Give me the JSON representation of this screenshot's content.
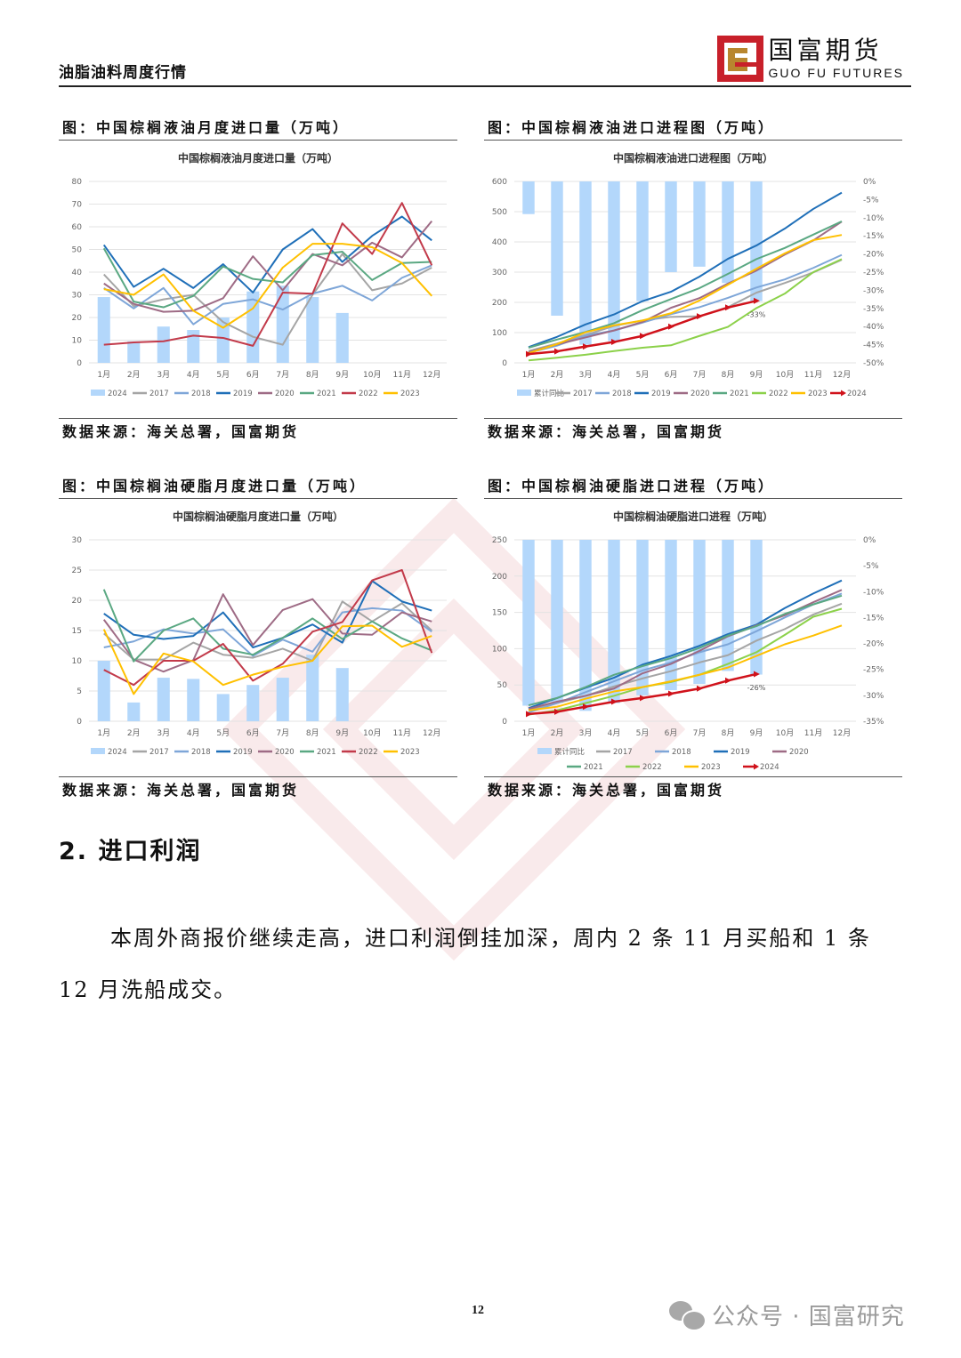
{
  "header": {
    "title": "油脂油料周度行情",
    "logo_cn": "国富期货",
    "logo_en": "GUO FU FUTURES"
  },
  "figures": [
    {
      "caption": "图：中国棕榈液油月度进口量（万吨）",
      "source": "数据来源：海关总署，国富期货"
    },
    {
      "caption": "图：中国棕榈液油进口进程图（万吨）",
      "source": "数据来源：海关总署，国富期货"
    },
    {
      "caption": "图：中国棕榈油硬脂月度进口量（万吨）",
      "source": "数据来源：海关总署，国富期货"
    },
    {
      "caption": "图：中国棕榈油硬脂进口进程（万吨）",
      "source": "数据来源：海关总署，国富期货"
    }
  ],
  "section": {
    "title": "2. 进口利润",
    "paragraph": "本周外商报价继续走高，进口利润倒挂加深，周内 2 条 11 月买船和 1 条 12 月洗船成交。"
  },
  "footer": {
    "page_number": "12",
    "wechat_label": "公众号 · 国富研究"
  },
  "colors": {
    "bar": "#b3d7fb",
    "2017": "#a5a5a5",
    "2018": "#7ea6d8",
    "2019": "#1f6fb8",
    "2020": "#9e6b85",
    "2021": "#5aa882",
    "2022": "#c23a4a",
    "2022_progress": "#8cd14a",
    "2023": "#ffc000",
    "2024": "#d0121b"
  },
  "chart_data": [
    {
      "type": "bar+line",
      "title": "中国棕榈液油月度进口量（万吨）",
      "categories": [
        "1月",
        "2月",
        "3月",
        "4月",
        "5月",
        "6月",
        "7月",
        "8月",
        "9月",
        "10月",
        "11月",
        "12月"
      ],
      "ylim": [
        0,
        80
      ],
      "yticks": [
        0,
        10,
        20,
        30,
        40,
        50,
        60,
        70,
        80
      ],
      "legend": [
        "2024",
        "2017",
        "2018",
        "2019",
        "2020",
        "2021",
        "2022",
        "2023"
      ],
      "bars": {
        "name": "2024",
        "values": [
          29,
          9.5,
          16,
          14.5,
          20,
          31.5,
          34,
          29,
          22
        ]
      },
      "series": [
        {
          "name": "2017",
          "values": [
            39,
            25,
            28,
            30,
            18,
            11.5,
            8,
            30,
            48,
            32,
            35,
            42
          ]
        },
        {
          "name": "2018",
          "values": [
            33,
            24,
            33,
            17,
            26,
            28,
            23.5,
            30.5,
            34,
            27.5,
            37.5,
            43
          ]
        },
        {
          "name": "2019",
          "values": [
            52,
            33.5,
            41.5,
            33,
            43.5,
            31,
            50,
            59,
            44.5,
            56,
            64.5,
            54
          ]
        },
        {
          "name": "2020",
          "values": [
            35,
            26,
            22.5,
            23,
            28.5,
            47,
            32,
            48,
            43,
            53,
            46.5,
            62.5
          ]
        },
        {
          "name": "2021",
          "values": [
            50.5,
            27,
            24.5,
            29.5,
            42.5,
            37,
            35.5,
            47.5,
            49,
            36.5,
            44,
            44.5
          ]
        },
        {
          "name": "2022",
          "values": [
            8,
            9,
            9.5,
            12,
            11,
            7.5,
            31,
            30.5,
            61.5,
            48,
            70.5,
            43
          ]
        },
        {
          "name": "2023",
          "values": [
            32.5,
            30,
            39,
            23,
            15.5,
            24,
            42,
            52.5,
            52.5,
            51,
            44,
            29.5
          ]
        }
      ],
      "xlabel": "",
      "ylabel": "",
      "grid": true,
      "legend_position": "bottom"
    },
    {
      "type": "bar+line",
      "title": "中国棕榈液油进口进程图（万吨）",
      "categories": [
        "1月",
        "2月",
        "3月",
        "4月",
        "5月",
        "6月",
        "7月",
        "8月",
        "9月",
        "10月",
        "11月",
        "12月"
      ],
      "ylim": [
        0,
        600
      ],
      "yticks": [
        0,
        100,
        200,
        300,
        400,
        500,
        600
      ],
      "y2lim": [
        -50,
        0
      ],
      "y2ticks": [
        "0%",
        "-5%",
        "-10%",
        "-15%",
        "-20%",
        "-25%",
        "-30%",
        "-35%",
        "-40%",
        "-45%",
        "-50%"
      ],
      "legend": [
        "累计同比",
        "2017",
        "2018",
        "2019",
        "2020",
        "2021",
        "2022",
        "2023",
        "2024"
      ],
      "bars": {
        "name": "累计同比",
        "axis": "right",
        "values": [
          -9,
          -37,
          -45,
          -44,
          -33,
          -25,
          -23.5,
          -28,
          -33
        ]
      },
      "series": [
        {
          "name": "2017",
          "values": [
            39,
            64,
            92,
            122,
            140,
            152,
            154,
            184,
            232,
            264,
            299,
            341
          ]
        },
        {
          "name": "2018",
          "values": [
            33,
            57,
            90,
            107,
            133,
            161,
            184,
            215,
            249,
            276,
            314,
            357
          ]
        },
        {
          "name": "2019",
          "values": [
            52,
            86,
            127,
            160,
            204,
            235,
            285,
            344,
            388,
            444,
            509,
            563
          ]
        },
        {
          "name": "2020",
          "values": [
            35,
            61,
            84,
            107,
            135,
            182,
            214,
            262,
            305,
            358,
            405,
            467
          ]
        },
        {
          "name": "2021",
          "values": [
            50,
            77,
            102,
            131,
            174,
            211,
            247,
            294,
            343,
            380,
            424,
            468
          ]
        },
        {
          "name": "2022",
          "values": [
            8,
            17,
            27,
            39,
            50,
            58,
            89,
            119,
            181,
            229,
            300,
            343
          ]
        },
        {
          "name": "2023",
          "values": [
            32,
            62,
            101,
            124,
            140,
            164,
            206,
            258,
            311,
            362,
            406,
            423
          ]
        },
        {
          "name": "2024",
          "values": [
            29,
            38,
            54,
            69,
            89,
            120,
            154,
            183,
            205
          ]
        }
      ],
      "annotations": [
        {
          "x": "9月",
          "text": "-33%"
        }
      ],
      "grid": true,
      "legend_position": "bottom"
    },
    {
      "type": "bar+line",
      "title": "中国棕榈油硬脂月度进口量（万吨）",
      "categories": [
        "1月",
        "2月",
        "3月",
        "4月",
        "5月",
        "6月",
        "7月",
        "8月",
        "9月",
        "10月",
        "11月",
        "12月"
      ],
      "ylim": [
        0,
        30
      ],
      "yticks": [
        0,
        5,
        10,
        15,
        20,
        25,
        30
      ],
      "legend": [
        "2024",
        "2017",
        "2018",
        "2019",
        "2020",
        "2021",
        "2022",
        "2023"
      ],
      "bars": {
        "name": "2024",
        "values": [
          10,
          3.1,
          7.2,
          7,
          4.5,
          6,
          7.2,
          11,
          8.8
        ]
      },
      "series": [
        {
          "name": "2017",
          "values": [
            14.5,
            10.2,
            10.2,
            13,
            11,
            10.5,
            12,
            10,
            19.8,
            16.5,
            19.5,
            15
          ]
        },
        {
          "name": "2018",
          "values": [
            12.2,
            13.2,
            15.2,
            14.5,
            15.2,
            10.8,
            13.5,
            11.5,
            18,
            18.7,
            18.3,
            14.8
          ]
        },
        {
          "name": "2019",
          "values": [
            17.8,
            14.3,
            13.6,
            14.1,
            18,
            12.2,
            13.8,
            16,
            13,
            23.2,
            19.8,
            18.3
          ]
        },
        {
          "name": "2020",
          "values": [
            16.8,
            10.2,
            8.2,
            10.1,
            21,
            12.6,
            18.4,
            20.2,
            14.5,
            14.3,
            18,
            16.5
          ]
        },
        {
          "name": "2021",
          "values": [
            21.8,
            9.9,
            15,
            17,
            12,
            11,
            13.8,
            17,
            13.6,
            16.5,
            13.7,
            11.7
          ]
        },
        {
          "name": "2022",
          "values": [
            8.5,
            6,
            10,
            10,
            12.8,
            6.7,
            9.5,
            14.8,
            16.4,
            23.3,
            25,
            11.3
          ]
        },
        {
          "name": "2023",
          "values": [
            15.2,
            4.5,
            11.2,
            9.9,
            6,
            7.7,
            9,
            10,
            15.7,
            15.8,
            12.3,
            14.1
          ]
        }
      ],
      "grid": true,
      "legend_position": "bottom"
    },
    {
      "type": "bar+line",
      "title": "中国棕榈油硬脂进口进程（万吨）",
      "categories": [
        "1月",
        "2月",
        "3月",
        "4月",
        "5月",
        "6月",
        "7月",
        "8月",
        "9月",
        "10月",
        "11月",
        "12月"
      ],
      "ylim": [
        0,
        250
      ],
      "yticks": [
        0,
        50,
        100,
        150,
        200,
        250
      ],
      "y2lim": [
        -35,
        0
      ],
      "y2ticks": [
        "0%",
        "-5%",
        "-10%",
        "-15%",
        "-20%",
        "-25%",
        "-30%",
        "-35%"
      ],
      "legend": [
        "累计同比",
        "2017",
        "2018",
        "2019",
        "2020",
        "2021",
        "2022",
        "2023",
        "2024"
      ],
      "bars": {
        "name": "累计同比",
        "axis": "right",
        "values": [
          -32,
          -31.5,
          -33,
          -31.5,
          -30,
          -29,
          -27.8,
          -25.3,
          -26
        ]
      },
      "series": [
        {
          "name": "2017",
          "values": [
            15,
            25,
            35,
            48,
            59,
            69,
            81,
            91,
            111,
            127,
            147,
            162
          ]
        },
        {
          "name": "2018",
          "values": [
            12,
            25,
            40,
            55,
            70,
            81,
            95,
            106,
            124,
            143,
            161,
            176
          ]
        },
        {
          "name": "2019",
          "values": [
            18,
            32,
            46,
            60,
            78,
            90,
            104,
            120,
            133,
            156,
            176,
            194
          ]
        },
        {
          "name": "2020",
          "values": [
            17,
            27,
            35,
            45,
            66,
            79,
            97,
            117,
            132,
            146,
            164,
            181
          ]
        },
        {
          "name": "2021",
          "values": [
            22,
            32,
            47,
            64,
            76,
            87,
            101,
            118,
            131,
            148,
            161,
            173
          ]
        },
        {
          "name": "2022",
          "values": [
            9,
            15,
            25,
            35,
            47,
            54,
            64,
            79,
            95,
            119,
            144,
            155
          ]
        },
        {
          "name": "2023",
          "values": [
            15,
            20,
            31,
            41,
            47,
            55,
            64,
            74,
            90,
            106,
            118,
            132
          ]
        },
        {
          "name": "2024",
          "values": [
            10,
            13,
            20,
            27,
            32,
            38,
            45,
            56,
            65
          ]
        }
      ],
      "annotations": [
        {
          "x": "9月",
          "text": "-26%"
        }
      ],
      "grid": true,
      "legend_position": "bottom"
    }
  ]
}
